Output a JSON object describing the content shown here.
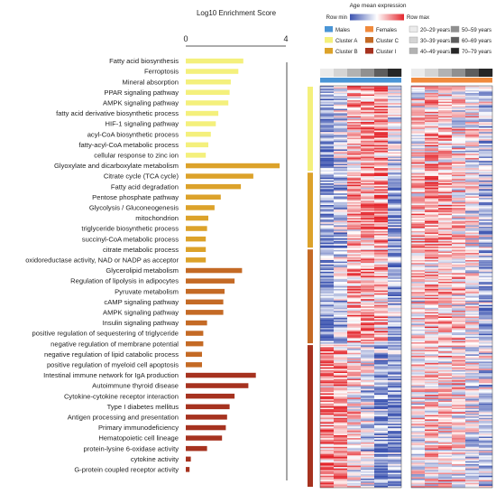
{
  "chart_data": {
    "type": "bar",
    "orientation": "horizontal",
    "xlabel": "Log10 Enrichment Score",
    "xlim": [
      0,
      4
    ],
    "x_ticks": [
      "0",
      "4"
    ],
    "grid": false,
    "clusters": [
      {
        "name": "Cluster A",
        "color": "#f4f07c",
        "categories": [
          "Fatty acid biosynthesis",
          "Ferroptosis",
          "Mineral absorption",
          "PPAR signaling pathway",
          "AMPK signaling pathway",
          "fatty acid derivative biosynthetic process",
          "HIF-1 signaling pathway",
          "acyl-CoA biosynthetic process",
          "fatty-acyl-CoA metabolic process",
          "cellular response to zinc ion"
        ],
        "values": [
          2.3,
          2.1,
          1.8,
          1.75,
          1.7,
          1.3,
          1.2,
          1.0,
          0.9,
          0.8
        ]
      },
      {
        "name": "Cluster B",
        "color": "#dca22a",
        "categories": [
          "Glyoxylate and dicarboxylate metabolism",
          "Citrate cycle (TCA cycle)",
          "Fatty acid degradation",
          "Pentose phosphate pathway",
          "Glycolysis / Gluconeogenesis",
          "mitochondrion",
          "triglyceride biosynthetic process",
          "succinyl-CoA metabolic process",
          "citrate metabolic process",
          "oxidoreductase activity, NAD or NADP as acceptor"
        ],
        "values": [
          3.75,
          2.7,
          2.2,
          1.4,
          1.15,
          0.9,
          0.85,
          0.8,
          0.8,
          0.8
        ]
      },
      {
        "name": "Cluster C",
        "color": "#c46a25",
        "categories": [
          "Glycerolipid metabolism",
          "Regulation of lipolysis in adipocytes",
          "Pyruvate metabolism",
          "cAMP signaling pathway",
          "AMPK signaling pathway",
          "Insulin signaling pathway",
          "positive regulation of sequestering of triglyceride",
          "negative regulation of membrane potential",
          "negative regulation of lipid catabolic process",
          "positive regulation of myeloid cell apoptosis"
        ],
        "values": [
          2.25,
          1.95,
          1.55,
          1.5,
          1.5,
          0.85,
          0.7,
          0.7,
          0.65,
          0.65
        ]
      },
      {
        "name": "Cluster I",
        "color": "#a6321f",
        "categories": [
          "Intestinal immune network for IgA production",
          "Autoimmune thyroid disease",
          "Cytokine-cytokine receptor interaction",
          "Type I diabetes mellitus",
          "Antigen processing and presentation",
          "Primary immunodeficiency",
          "Hematopoietic cell lineage",
          "protein-lysine 6-oxidase activity",
          "cytokine activity",
          "G-protein coupled receptor activity"
        ],
        "values": [
          2.8,
          2.5,
          1.95,
          1.75,
          1.65,
          1.6,
          1.45,
          0.85,
          0.2,
          0.15
        ]
      }
    ]
  },
  "heatmap": {
    "title": "Age mean expression",
    "colorbar": {
      "min_label": "Row min",
      "max_label": "Row max",
      "low_color": "#3b53b0",
      "mid_color": "#ffffff",
      "high_color": "#e4262c"
    },
    "legend": [
      {
        "label": "Males",
        "color": "#4a95d6"
      },
      {
        "label": "Females",
        "color": "#f08a3c"
      },
      {
        "label": "20–29 years",
        "color": "#ebebeb"
      },
      {
        "label": "50–59 years",
        "color": "#909090"
      },
      {
        "label": "Cluster A",
        "color": "#f4f07c"
      },
      {
        "label": "Cluster C",
        "color": "#c46a25"
      },
      {
        "label": "30–39 years",
        "color": "#d4d4d4"
      },
      {
        "label": "60–69 years",
        "color": "#5d5d5d"
      },
      {
        "label": "Cluster B",
        "color": "#dca22a"
      },
      {
        "label": "Cluster I",
        "color": "#a6321f"
      },
      {
        "label": "40–49 years",
        "color": "#b2b2b2"
      },
      {
        "label": "70–79 years",
        "color": "#262626"
      }
    ],
    "sex_groups": [
      {
        "name": "Males",
        "color": "#4a95d6"
      },
      {
        "name": "Females",
        "color": "#f08a3c"
      }
    ],
    "age_groups": [
      {
        "name": "20–29 years",
        "color": "#ebebeb"
      },
      {
        "name": "30–39 years",
        "color": "#d4d4d4"
      },
      {
        "name": "40–49 years",
        "color": "#b2b2b2"
      },
      {
        "name": "50–59 years",
        "color": "#909090"
      },
      {
        "name": "60–69 years",
        "color": "#5d5d5d"
      },
      {
        "name": "70–79 years",
        "color": "#262626"
      }
    ],
    "row_clusters": [
      {
        "name": "Cluster A",
        "color": "#f4f07c",
        "weight": 0.214
      },
      {
        "name": "Cluster B",
        "color": "#dca22a",
        "weight": 0.191
      },
      {
        "name": "Cluster C",
        "color": "#c46a25",
        "weight": 0.238
      },
      {
        "name": "Cluster I",
        "color": "#a6321f",
        "weight": 0.357
      }
    ],
    "male_block_bias": [
      [
        -0.6,
        -0.2,
        0.35,
        0.5,
        0.55,
        -0.15
      ],
      [
        -0.55,
        -0.35,
        0.4,
        0.45,
        0.55,
        -0.6
      ],
      [
        -0.55,
        -0.3,
        0.45,
        0.45,
        0.3,
        -0.55
      ],
      [
        0.55,
        0.5,
        0.1,
        -0.15,
        -0.55,
        -0.6
      ]
    ],
    "female_block_bias": [
      [
        0.05,
        0.25,
        0.3,
        0.05,
        0.0,
        -0.3
      ],
      [
        0.2,
        0.45,
        0.3,
        0.1,
        -0.1,
        -0.35
      ],
      [
        0.1,
        0.3,
        0.3,
        0.2,
        -0.05,
        -0.4
      ],
      [
        0.0,
        0.2,
        0.15,
        0.1,
        -0.15,
        -0.25
      ]
    ]
  }
}
